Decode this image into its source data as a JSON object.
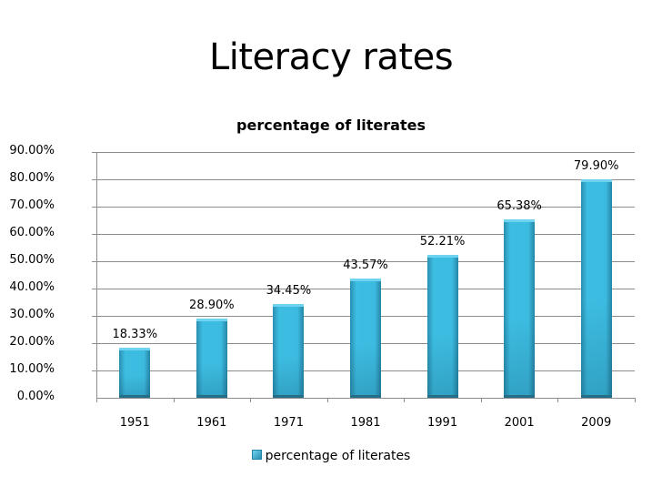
{
  "slide": {
    "title": "Literacy rates"
  },
  "chart_data": {
    "type": "bar",
    "title": "percentage of literates",
    "xlabel": "",
    "ylabel": "",
    "categories": [
      "1951",
      "1961",
      "1971",
      "1981",
      "1991",
      "2001",
      "2009"
    ],
    "series": [
      {
        "name": "percentage of literates",
        "values": [
          18.33,
          28.9,
          34.45,
          43.57,
          52.21,
          65.38,
          79.9
        ],
        "labels": [
          "18.33%",
          "28.90%",
          "34.45%",
          "43.57%",
          "52.21%",
          "65.38%",
          "79.90%"
        ],
        "color": "#3cbbe0"
      }
    ],
    "ylim": [
      0,
      90
    ],
    "yticks": [
      "0.00%",
      "10.00%",
      "20.00%",
      "30.00%",
      "40.00%",
      "50.00%",
      "60.00%",
      "70.00%",
      "80.00%",
      "90.00%"
    ],
    "grid": true,
    "legend_position": "bottom",
    "data_labels": true
  },
  "legend": {
    "label": "percentage of literates"
  }
}
